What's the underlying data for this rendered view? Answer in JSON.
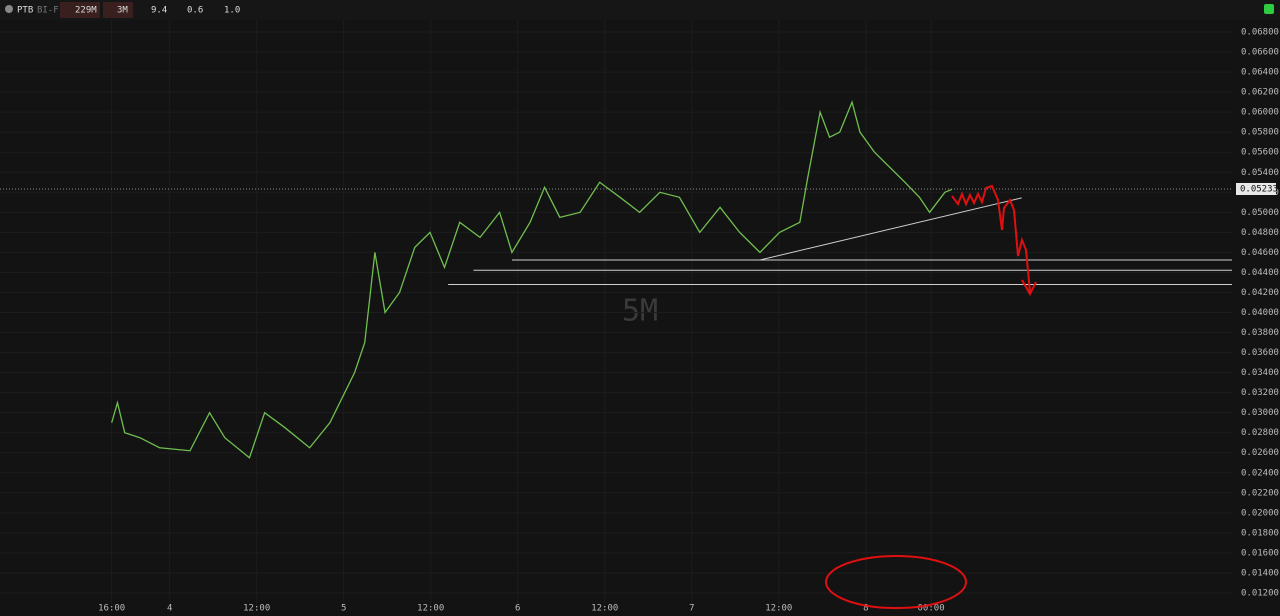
{
  "toolbar": {
    "symbol": "PTB",
    "exchange": "BI-F",
    "volume": "229M",
    "timeframe": "3M",
    "stat1": "9.4",
    "stat2": "0.6",
    "stat3": "1.0"
  },
  "chart_data": {
    "type": "line",
    "watermark": "5M",
    "color": "#6fbf4f",
    "grid": true,
    "last_price": 0.05233,
    "x": [
      0,
      0.8,
      1.8,
      3.9,
      6.6,
      10.8,
      13.5,
      15.6,
      19.0,
      21.1,
      23.9,
      27.3,
      30.1,
      33.5,
      34.9,
      36.3,
      37.7,
      39.7,
      41.8,
      43.9,
      45.9,
      48.0,
      50.8,
      53.5,
      55.2,
      57.7,
      59.7,
      61.8,
      64.6,
      67.3,
      70.1,
      72.8,
      75.6,
      78.3,
      81.1,
      83.9,
      86.6,
      89.4,
      92.1,
      94.9,
      96.0,
      97.7,
      99.0,
      100.4,
      102.1,
      103.2,
      105.2,
      107.3,
      109.4,
      111.4,
      112.8,
      114.9,
      115.9
    ],
    "values": [
      0.029,
      0.031,
      0.028,
      0.0275,
      0.0265,
      0.0262,
      0.03,
      0.0275,
      0.0255,
      0.03,
      0.0285,
      0.0265,
      0.029,
      0.034,
      0.037,
      0.046,
      0.04,
      0.042,
      0.0465,
      0.048,
      0.0445,
      0.049,
      0.0475,
      0.05,
      0.046,
      0.049,
      0.0525,
      0.0495,
      0.05,
      0.053,
      0.0515,
      0.05,
      0.052,
      0.0515,
      0.048,
      0.0505,
      0.048,
      0.046,
      0.048,
      0.049,
      0.0535,
      0.06,
      0.0575,
      0.058,
      0.061,
      0.058,
      0.056,
      0.0545,
      0.053,
      0.0515,
      0.05,
      0.052,
      0.0523
    ],
    "xlim": [
      -15.4,
      154.5
    ],
    "ylim": [
      0.0108,
      0.0692
    ],
    "xticks": [
      {
        "value": 0,
        "label": "16:00"
      },
      {
        "value": 8,
        "label": "4"
      },
      {
        "value": 20,
        "label": "12:00"
      },
      {
        "value": 32,
        "label": "5"
      },
      {
        "value": 44,
        "label": "12:00"
      },
      {
        "value": 56,
        "label": "6"
      },
      {
        "value": 68,
        "label": "12:00"
      },
      {
        "value": 80,
        "label": "7"
      },
      {
        "value": 92,
        "label": "12:00"
      },
      {
        "value": 104,
        "label": "8"
      },
      {
        "value": 113,
        "label": "00:00"
      }
    ],
    "yticks": [
      {
        "value": 0.012,
        "label": "0.01200"
      },
      {
        "value": 0.014,
        "label": "0.01400"
      },
      {
        "value": 0.016,
        "label": "0.01600"
      },
      {
        "value": 0.018,
        "label": "0.01800"
      },
      {
        "value": 0.02,
        "label": "0.02000"
      },
      {
        "value": 0.022,
        "label": "0.02200"
      },
      {
        "value": 0.024,
        "label": "0.02400"
      },
      {
        "value": 0.026,
        "label": "0.02600"
      },
      {
        "value": 0.028,
        "label": "0.02800"
      },
      {
        "value": 0.03,
        "label": "0.03000"
      },
      {
        "value": 0.032,
        "label": "0.03200"
      },
      {
        "value": 0.034,
        "label": "0.03400"
      },
      {
        "value": 0.036,
        "label": "0.03600"
      },
      {
        "value": 0.038,
        "label": "0.03800"
      },
      {
        "value": 0.04,
        "label": "0.04000"
      },
      {
        "value": 0.042,
        "label": "0.04200"
      },
      {
        "value": 0.044,
        "label": "0.04400"
      },
      {
        "value": 0.046,
        "label": "0.04600"
      },
      {
        "value": 0.048,
        "label": "0.04800"
      },
      {
        "value": 0.05,
        "label": "0.05000"
      },
      {
        "value": 0.052,
        "label": "0.05200"
      },
      {
        "value": 0.054,
        "label": "0.05400"
      },
      {
        "value": 0.056,
        "label": "0.05600"
      },
      {
        "value": 0.058,
        "label": "0.05800"
      },
      {
        "value": 0.06,
        "label": "0.06000"
      },
      {
        "value": 0.062,
        "label": "0.06200"
      },
      {
        "value": 0.064,
        "label": "0.06400"
      },
      {
        "value": 0.066,
        "label": "0.06600"
      },
      {
        "value": 0.068,
        "label": "0.06800"
      }
    ],
    "drawings": [
      {
        "x": [
          55.2,
          154.5
        ],
        "y": [
          0.04524,
          0.04524
        ]
      },
      {
        "x": [
          49.9,
          154.5
        ],
        "y": [
          0.04422,
          0.04422
        ]
      },
      {
        "x": [
          46.4,
          154.5
        ],
        "y": [
          0.0428,
          0.0428
        ]
      },
      {
        "x": [
          89.4,
          125.5
        ],
        "y": [
          0.04524,
          0.05144
        ]
      }
    ]
  }
}
